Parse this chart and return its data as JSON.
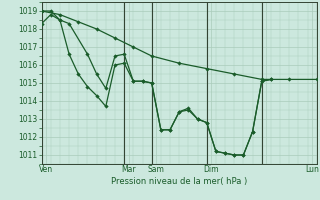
{
  "background_color": "#cce8de",
  "grid_color": "#aaccbb",
  "line_color": "#1a5c2a",
  "xlabel": "Pression niveau de la mer( hPa )",
  "ylim": [
    1010.5,
    1019.5
  ],
  "yticks": [
    1011,
    1012,
    1013,
    1014,
    1015,
    1016,
    1017,
    1018,
    1019
  ],
  "xlim": [
    0,
    30
  ],
  "xtick_positions": [
    0.5,
    9.5,
    12.5,
    18.5,
    24.5,
    29.5
  ],
  "xtick_labels": [
    "Ven",
    "Mar",
    "Sam",
    "Dim",
    "",
    "Lun"
  ],
  "vline_positions": [
    0,
    9,
    12,
    18,
    24,
    30
  ],
  "series_diag_x": [
    0,
    2,
    4,
    6,
    8,
    10,
    12,
    15,
    18,
    21,
    24,
    27,
    30
  ],
  "series_diag_y": [
    1019.0,
    1018.8,
    1018.4,
    1018.0,
    1017.5,
    1017.0,
    1016.5,
    1016.1,
    1015.8,
    1015.5,
    1015.2,
    1015.2,
    1015.2
  ],
  "series_main_x": [
    0,
    1,
    2,
    3,
    4,
    5,
    6,
    7,
    8,
    9,
    10,
    11,
    12,
    13,
    14,
    15,
    16,
    17,
    18,
    19,
    20,
    21,
    22,
    23,
    24,
    25
  ],
  "series_main_y": [
    1019.0,
    1019.0,
    1018.5,
    1016.6,
    1015.5,
    1014.8,
    1014.3,
    1013.7,
    1016.0,
    1016.1,
    1015.1,
    1015.1,
    1015.0,
    1012.4,
    1012.4,
    1013.4,
    1013.6,
    1013.0,
    1012.8,
    1011.2,
    1011.1,
    1011.0,
    1011.0,
    1012.3,
    1015.1,
    1015.2
  ],
  "series_alt_x": [
    0,
    1,
    2,
    3,
    5,
    6,
    7,
    8,
    9,
    10,
    11,
    12,
    13,
    14,
    15,
    16,
    17,
    18,
    19,
    20,
    21,
    22,
    23,
    24,
    25
  ],
  "series_alt_y": [
    1018.3,
    1018.8,
    1018.5,
    1018.3,
    1016.6,
    1015.5,
    1014.7,
    1016.5,
    1016.6,
    1015.1,
    1015.1,
    1015.0,
    1012.4,
    1012.4,
    1013.4,
    1013.5,
    1013.0,
    1012.8,
    1011.2,
    1011.1,
    1011.0,
    1011.0,
    1012.3,
    1015.1,
    1015.2
  ]
}
